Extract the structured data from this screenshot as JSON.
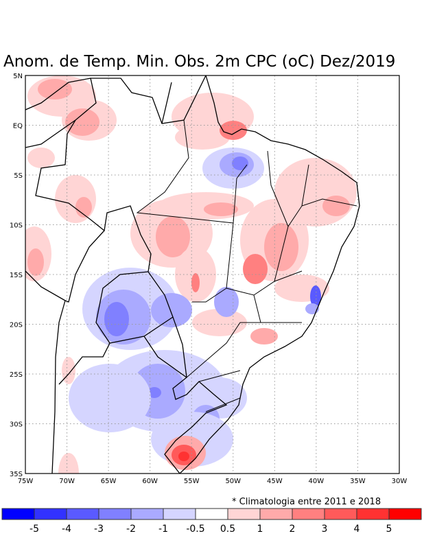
{
  "title": "Anom. de Temp. Min. Obs. 2m CPC (oC) Dez/2019",
  "note": "* Climatologia entre 2011 e 2018",
  "lat_labels": [
    "5N",
    "EQ",
    "5S",
    "10S",
    "15S",
    "20S",
    "25S",
    "30S",
    "35S"
  ],
  "lon_labels": [
    "75W",
    "70W",
    "65W",
    "60W",
    "55W",
    "50W",
    "45W",
    "40W",
    "35W",
    "30W"
  ],
  "colorbar": {
    "labels": [
      "-5",
      "-4",
      "-3",
      "-2",
      "-1",
      "-0.5",
      "0.5",
      "1",
      "2",
      "3",
      "4",
      "5"
    ],
    "colors": [
      "#0000ff",
      "#3232ff",
      "#5a5aff",
      "#8080ff",
      "#aaaaff",
      "#d5d5ff",
      "#ffffff",
      "#ffd5d5",
      "#ffaaaa",
      "#ff8080",
      "#ff5a5a",
      "#ff3232",
      "#ff0000"
    ]
  }
}
